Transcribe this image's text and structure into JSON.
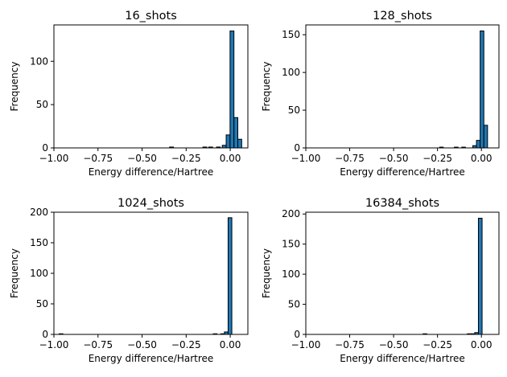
{
  "colors": {
    "bar_fill": "#1f77b4",
    "bar_edge": "#000000"
  },
  "chart_data": [
    {
      "type": "bar",
      "title": "16_shots",
      "xlabel": "Energy difference/Hartree",
      "ylabel": "Frequency",
      "xlim": [
        -1.0,
        0.1
      ],
      "ylim": [
        0,
        142
      ],
      "xticks": [
        -1.0,
        -0.75,
        -0.5,
        -0.25,
        0.0
      ],
      "xtick_labels": [
        "−1.00",
        "−0.75",
        "−0.50",
        "−0.25",
        "0.00"
      ],
      "yticks": [
        0,
        50,
        100
      ],
      "ytick_labels": [
        "0",
        "50",
        "100"
      ],
      "bins": [
        {
          "x0": -0.344,
          "x1": -0.322,
          "count": 1
        },
        {
          "x0": -0.155,
          "x1": -0.133,
          "count": 1
        },
        {
          "x0": -0.122,
          "x1": -0.1,
          "count": 1
        },
        {
          "x0": -0.078,
          "x1": -0.056,
          "count": 1
        },
        {
          "x0": -0.045,
          "x1": -0.023,
          "count": 3
        },
        {
          "x0": -0.023,
          "x1": -0.001,
          "count": 15
        },
        {
          "x0": -0.001,
          "x1": 0.021,
          "count": 135
        },
        {
          "x0": 0.021,
          "x1": 0.043,
          "count": 35
        },
        {
          "x0": 0.043,
          "x1": 0.065,
          "count": 10
        }
      ]
    },
    {
      "type": "bar",
      "title": "128_shots",
      "xlabel": "Energy difference/Hartree",
      "ylabel": "Frequency",
      "xlim": [
        -1.0,
        0.1
      ],
      "ylim": [
        0,
        163
      ],
      "xticks": [
        -1.0,
        -0.75,
        -0.5,
        -0.25,
        0.0
      ],
      "xtick_labels": [
        "−1.00",
        "−0.75",
        "−0.50",
        "−0.25",
        "0.00"
      ],
      "yticks": [
        0,
        50,
        100,
        150
      ],
      "ytick_labels": [
        "0",
        "50",
        "100",
        "150"
      ],
      "bins": [
        {
          "x0": -0.238,
          "x1": -0.217,
          "count": 1
        },
        {
          "x0": -0.154,
          "x1": -0.133,
          "count": 1
        },
        {
          "x0": -0.112,
          "x1": -0.091,
          "count": 1
        },
        {
          "x0": -0.049,
          "x1": -0.028,
          "count": 3
        },
        {
          "x0": -0.028,
          "x1": -0.007,
          "count": 10
        },
        {
          "x0": -0.007,
          "x1": 0.014,
          "count": 155
        },
        {
          "x0": 0.014,
          "x1": 0.035,
          "count": 30
        }
      ]
    },
    {
      "type": "bar",
      "title": "1024_shots",
      "xlabel": "Energy difference/Hartree",
      "ylabel": "Frequency",
      "xlim": [
        -1.0,
        0.1
      ],
      "ylim": [
        0,
        200
      ],
      "xticks": [
        -1.0,
        -0.75,
        -0.5,
        -0.25,
        0.0
      ],
      "xtick_labels": [
        "−1.00",
        "−0.75",
        "−0.50",
        "−0.25",
        "0.00"
      ],
      "yticks": [
        0,
        50,
        100,
        150,
        200
      ],
      "ytick_labels": [
        "0",
        "50",
        "100",
        "150",
        "200"
      ],
      "bins": [
        {
          "x0": -0.97,
          "x1": -0.949,
          "count": 1
        },
        {
          "x0": -0.096,
          "x1": -0.075,
          "count": 1
        },
        {
          "x0": -0.054,
          "x1": -0.033,
          "count": 1
        },
        {
          "x0": -0.033,
          "x1": -0.012,
          "count": 4
        },
        {
          "x0": -0.012,
          "x1": 0.009,
          "count": 191
        }
      ]
    },
    {
      "type": "bar",
      "title": "16384_shots",
      "xlabel": "Energy difference/Hartree",
      "ylabel": "Frequency",
      "xlim": [
        -1.0,
        0.1
      ],
      "ylim": [
        0,
        203
      ],
      "xticks": [
        -1.0,
        -0.75,
        -0.5,
        -0.25,
        0.0
      ],
      "xtick_labels": [
        "−1.00",
        "−0.75",
        "−0.50",
        "−0.25",
        "0.00"
      ],
      "yticks": [
        0,
        50,
        100,
        150,
        200
      ],
      "ytick_labels": [
        "0",
        "50",
        "100",
        "150",
        "200"
      ],
      "bins": [
        {
          "x0": -0.332,
          "x1": -0.311,
          "count": 1
        },
        {
          "x0": -0.08,
          "x1": -0.059,
          "count": 1
        },
        {
          "x0": -0.059,
          "x1": -0.038,
          "count": 1
        },
        {
          "x0": -0.038,
          "x1": -0.017,
          "count": 3
        },
        {
          "x0": -0.017,
          "x1": 0.004,
          "count": 193
        }
      ]
    }
  ]
}
